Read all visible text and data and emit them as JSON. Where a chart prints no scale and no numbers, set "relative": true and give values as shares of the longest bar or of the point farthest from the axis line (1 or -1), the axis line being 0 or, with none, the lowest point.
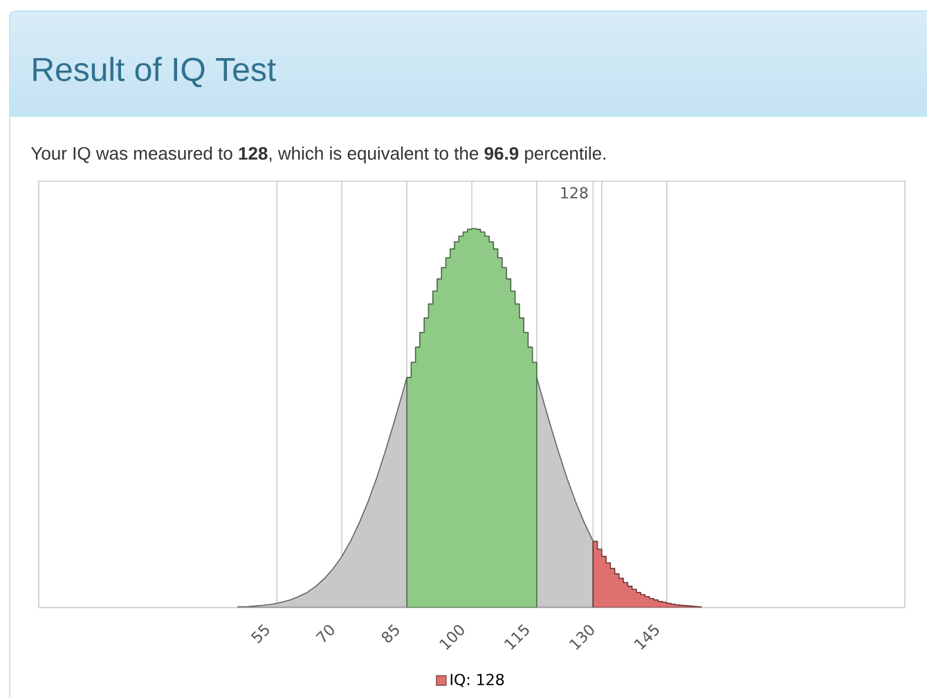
{
  "chart_data": {
    "type": "area",
    "title": "Result of IQ Test",
    "subtitle": "Your IQ was measured to **128**, which is equivalent to the **96.9** percentile.",
    "relative": true,
    "xlim": [
      0,
      200
    ],
    "xticks": [
      55,
      70,
      85,
      100,
      115,
      130,
      145
    ],
    "grid": "x",
    "legend": "bottom",
    "tick_labels": "x",
    "ref_lines": [
      {
        "axis": "x",
        "value": 128,
        "label": "128",
        "color": "#cccccc"
      }
    ],
    "series": [
      {
        "color": "#c8c8c8",
        "x": [
          46,
          48,
          50,
          52,
          54,
          56,
          58,
          60,
          62,
          64,
          66,
          68,
          70,
          72,
          74,
          76,
          78,
          80,
          82,
          84,
          85,
          115,
          116,
          118,
          120,
          122,
          124,
          126,
          128
        ],
        "values": [
          0.002,
          0.002,
          0.004,
          0.006,
          0.009,
          0.014,
          0.02,
          0.029,
          0.04,
          0.056,
          0.077,
          0.103,
          0.135,
          0.175,
          0.223,
          0.278,
          0.341,
          0.411,
          0.487,
          0.566,
          0.607,
          0.607,
          0.566,
          0.487,
          0.411,
          0.341,
          0.278,
          0.223,
          0.175
        ]
      },
      {
        "color": "#8fcb86",
        "x": [
          85,
          86,
          86,
          87,
          87,
          88,
          88,
          89,
          89,
          90,
          90,
          91,
          91,
          92,
          92,
          93,
          93,
          94,
          94,
          95,
          95,
          96,
          96,
          97,
          97,
          98,
          98,
          99,
          99,
          100,
          100,
          101,
          101,
          102,
          102,
          103,
          103,
          104,
          104,
          105,
          105,
          106,
          106,
          107,
          107,
          108,
          108,
          109,
          109,
          110,
          110,
          111,
          111,
          112,
          112,
          113,
          113,
          114,
          114,
          115
        ],
        "values": [
          0.607,
          0.607,
          0.647,
          0.647,
          0.687,
          0.687,
          0.726,
          0.726,
          0.764,
          0.764,
          0.801,
          0.801,
          0.835,
          0.835,
          0.867,
          0.867,
          0.897,
          0.897,
          0.923,
          0.923,
          0.946,
          0.946,
          0.965,
          0.965,
          0.98,
          0.98,
          0.991,
          0.991,
          0.998,
          0.998,
          1,
          1,
          0.998,
          0.998,
          0.991,
          0.991,
          0.98,
          0.98,
          0.965,
          0.965,
          0.946,
          0.946,
          0.923,
          0.923,
          0.897,
          0.897,
          0.867,
          0.867,
          0.835,
          0.835,
          0.801,
          0.801,
          0.764,
          0.764,
          0.726,
          0.726,
          0.687,
          0.687,
          0.647,
          0.647
        ]
      },
      {
        "name": "IQ: 128",
        "color": "#e07070",
        "x": [
          128,
          129,
          129,
          130,
          130,
          131,
          131,
          132,
          132,
          133,
          133,
          134,
          134,
          135,
          135,
          136,
          136,
          137,
          137,
          138,
          138,
          139,
          139,
          140,
          140,
          141,
          141,
          142,
          142,
          143,
          143,
          144,
          144,
          145,
          145,
          146,
          146,
          147,
          147,
          148,
          148,
          149,
          149,
          150,
          150,
          151,
          151,
          152,
          152,
          153
        ],
        "values": [
          0.175,
          0.175,
          0.154,
          0.154,
          0.135,
          0.135,
          0.118,
          0.118,
          0.103,
          0.103,
          0.089,
          0.089,
          0.077,
          0.077,
          0.066,
          0.066,
          0.056,
          0.056,
          0.048,
          0.048,
          0.04,
          0.04,
          0.034,
          0.034,
          0.029,
          0.029,
          0.024,
          0.024,
          0.02,
          0.02,
          0.016,
          0.016,
          0.014,
          0.014,
          0.011,
          0.011,
          0.009,
          0.009,
          0.007,
          0.007,
          0.006,
          0.006,
          0.005,
          0.005,
          0.004,
          0.004,
          0.003,
          0.003,
          0.002,
          0.002
        ]
      }
    ]
  }
}
